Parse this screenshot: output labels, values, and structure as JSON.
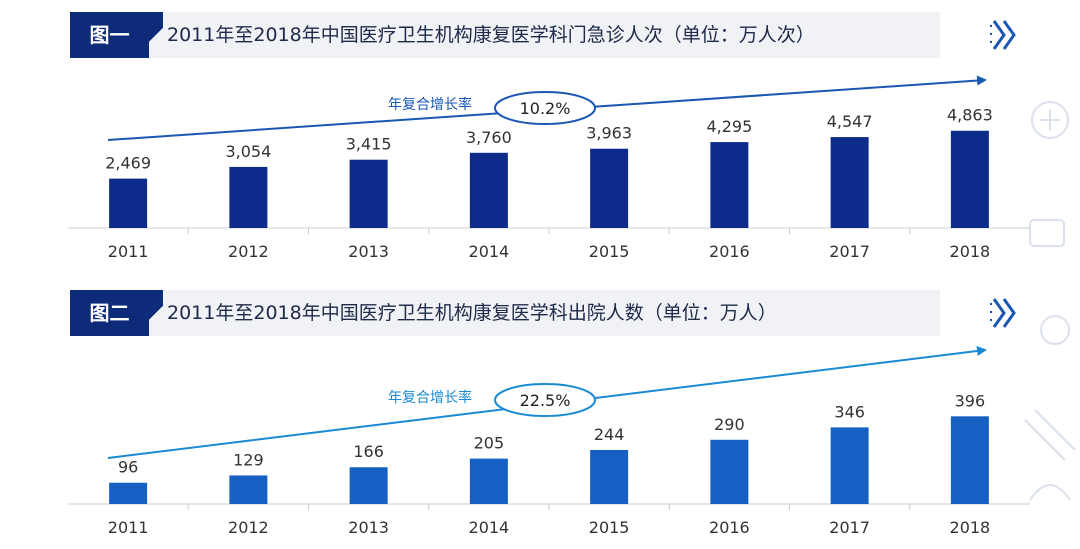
{
  "figures": [
    {
      "tag": "图一",
      "title": "2011年至2018年中国医疗卫生机构康复医学科门急诊人次（单位：万人次）",
      "cagr_label": "年复合增长率",
      "cagr_value": "10.2%"
    },
    {
      "tag": "图二",
      "title": "2011年至2018年中国医疗卫生机构康复医学科出院人数（单位：万人）",
      "cagr_label": "年复合增长率",
      "cagr_value": "22.5%"
    }
  ],
  "chart_data": [
    {
      "type": "bar",
      "title": "2011年至2018年中国医疗卫生机构康复医学科门急诊人次（单位：万人次）",
      "categories": [
        "2011",
        "2012",
        "2013",
        "2014",
        "2015",
        "2016",
        "2017",
        "2018"
      ],
      "values": [
        2469,
        3054,
        3415,
        3760,
        3963,
        4295,
        4547,
        4863
      ],
      "value_labels": [
        "2,469",
        "3,054",
        "3,415",
        "3,760",
        "3,963",
        "4,295",
        "4,547",
        "4,863"
      ],
      "ylim": [
        0,
        5000
      ],
      "grid": false,
      "bar_color": "#0d2b8a",
      "arrow_color": "#1a56b4"
    },
    {
      "type": "bar",
      "title": "2011年至2018年中国医疗卫生机构康复医学科出院人数（单位：万人）",
      "categories": [
        "2011",
        "2012",
        "2013",
        "2014",
        "2015",
        "2016",
        "2017",
        "2018"
      ],
      "values": [
        96,
        129,
        166,
        205,
        244,
        290,
        346,
        396
      ],
      "value_labels": [
        "96",
        "129",
        "166",
        "205",
        "244",
        "290",
        "346",
        "396"
      ],
      "ylim": [
        0,
        420
      ],
      "grid": false,
      "bar_color": "#1560c2",
      "arrow_color": "#1a8ad4"
    }
  ]
}
